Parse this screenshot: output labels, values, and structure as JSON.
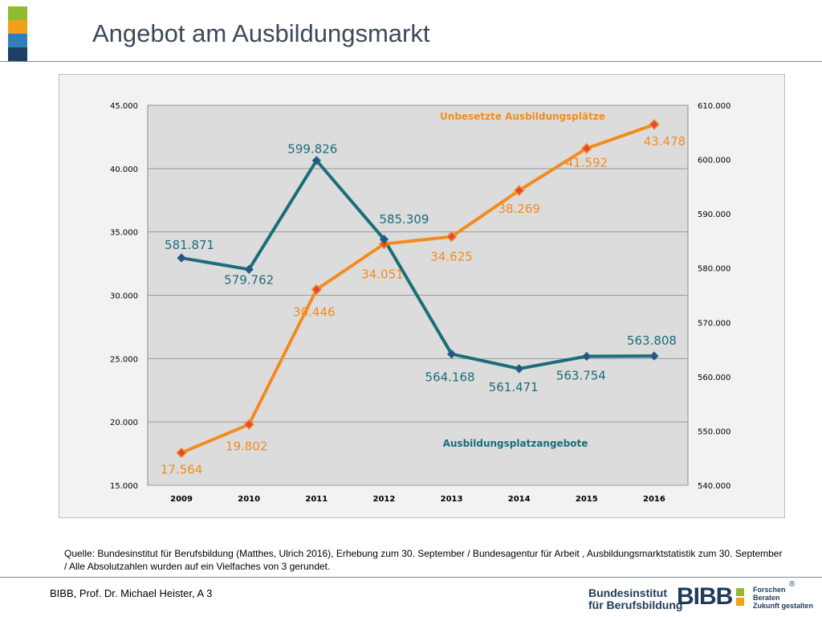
{
  "page": {
    "title": "Angebot am Ausbildungsmarkt",
    "source": "Quelle: Bundesinstitut für Berufsbildung (Matthes, Ulrich 2016), Erhebung zum 30. September / Bundesagentur für Arbeit , Ausbildungsmarktstatistik zum 30. September / Alle Absolutzahlen wurden auf ein Vielfaches von 3 gerundet.",
    "footer": "BIBB, Prof. Dr. Michael Heister, A 3",
    "brand_colors": [
      "#8fbc2e",
      "#f2a01c",
      "#2f7fbf",
      "#1d3f63"
    ],
    "logo": {
      "name_line1": "Bundesinstitut",
      "name_line2": "für Berufsbildung",
      "wordmark": "BIBB",
      "motto1": "Forschen",
      "motto2": "Beraten",
      "motto3": "Zukunft gestalten",
      "registered": "®"
    }
  },
  "chart_data": {
    "type": "line",
    "categories": [
      "2009",
      "2010",
      "2011",
      "2012",
      "2013",
      "2014",
      "2015",
      "2016"
    ],
    "series": [
      {
        "name": "Unbesetzte Ausbildungsplätze",
        "axis": "left",
        "color": "#f28c1e",
        "values": [
          17564,
          19802,
          30446,
          34051,
          34625,
          38269,
          41592,
          43478
        ],
        "labels": [
          "17.564",
          "19.802",
          "30.446",
          "34.051",
          "34.625",
          "38.269",
          "41.592",
          "43.478"
        ]
      },
      {
        "name": "Ausbildungsplatzangebote",
        "axis": "right",
        "color": "#1b6d7a",
        "values": [
          581871,
          579762,
          599826,
          585309,
          564168,
          561471,
          563754,
          563808
        ],
        "labels": [
          "581.871",
          "579.762",
          "599.826",
          "585.309",
          "564.168",
          "561.471",
          "563.754",
          "563.808"
        ]
      }
    ],
    "left_axis": {
      "min": 15000,
      "max": 45000,
      "ticks": [
        15000,
        20000,
        25000,
        30000,
        35000,
        40000,
        45000
      ],
      "tick_labels": [
        "15.000",
        "20.000",
        "25.000",
        "30.000",
        "35.000",
        "40.000",
        "45.000"
      ]
    },
    "right_axis": {
      "min": 540000,
      "max": 610000,
      "ticks": [
        540000,
        550000,
        560000,
        570000,
        580000,
        590000,
        600000,
        610000
      ],
      "tick_labels": [
        "540.000",
        "550.000",
        "560.000",
        "570.000",
        "580.000",
        "590.000",
        "600.000",
        "610.000"
      ]
    },
    "grid": true
  }
}
